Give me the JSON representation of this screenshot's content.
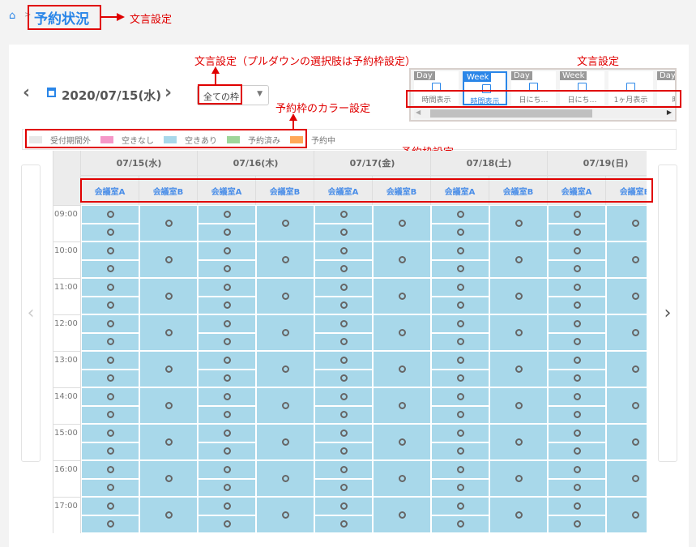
{
  "breadcrumb": {
    "home_icon": "home-icon",
    "separator": ">",
    "title": "予約状況"
  },
  "annotations": {
    "title": "文言設定",
    "dropdown": "文言設定（プルダウンの選択肢は予約枠設定）",
    "legend": "予約枠のカラー設定",
    "modes": "文言設定",
    "rooms": "予約枠設定"
  },
  "toolbar": {
    "date": "2020/07/15(水)",
    "calendar_icon": "calendar-icon",
    "filter_value": "全ての枠"
  },
  "legend": [
    {
      "label": "受付期間外",
      "color": "#e8e8e8"
    },
    {
      "label": "空きなし",
      "color": "#f598c8"
    },
    {
      "label": "空きあり",
      "color": "#a8d8ea"
    },
    {
      "label": "予約済み",
      "color": "#9ed69a"
    },
    {
      "label": "予約中",
      "color": "#ffa858"
    }
  ],
  "view_modes": [
    {
      "tag": "Day",
      "label": "時間表示",
      "selected": false
    },
    {
      "tag": "Week",
      "label": "時間表示",
      "selected": true
    },
    {
      "tag": "Day",
      "label": "日にち…",
      "selected": false
    },
    {
      "tag": "Week",
      "label": "日にち…",
      "selected": false
    },
    {
      "tag": "",
      "label": "1ヶ月表示",
      "selected": false
    },
    {
      "tag": "Day",
      "label": "時間",
      "selected": false
    }
  ],
  "schedule": {
    "dates": [
      "07/15(水)",
      "07/16(木)",
      "07/17(金)",
      "07/18(土)",
      "07/19(日)"
    ],
    "rooms": [
      "会議室A",
      "会議室B"
    ],
    "times": [
      "09:00",
      "10:00",
      "11:00",
      "12:00",
      "13:00",
      "14:00",
      "15:00",
      "16:00",
      "17:00"
    ],
    "available_symbol": "○",
    "available_color": "#a8d8ea"
  }
}
